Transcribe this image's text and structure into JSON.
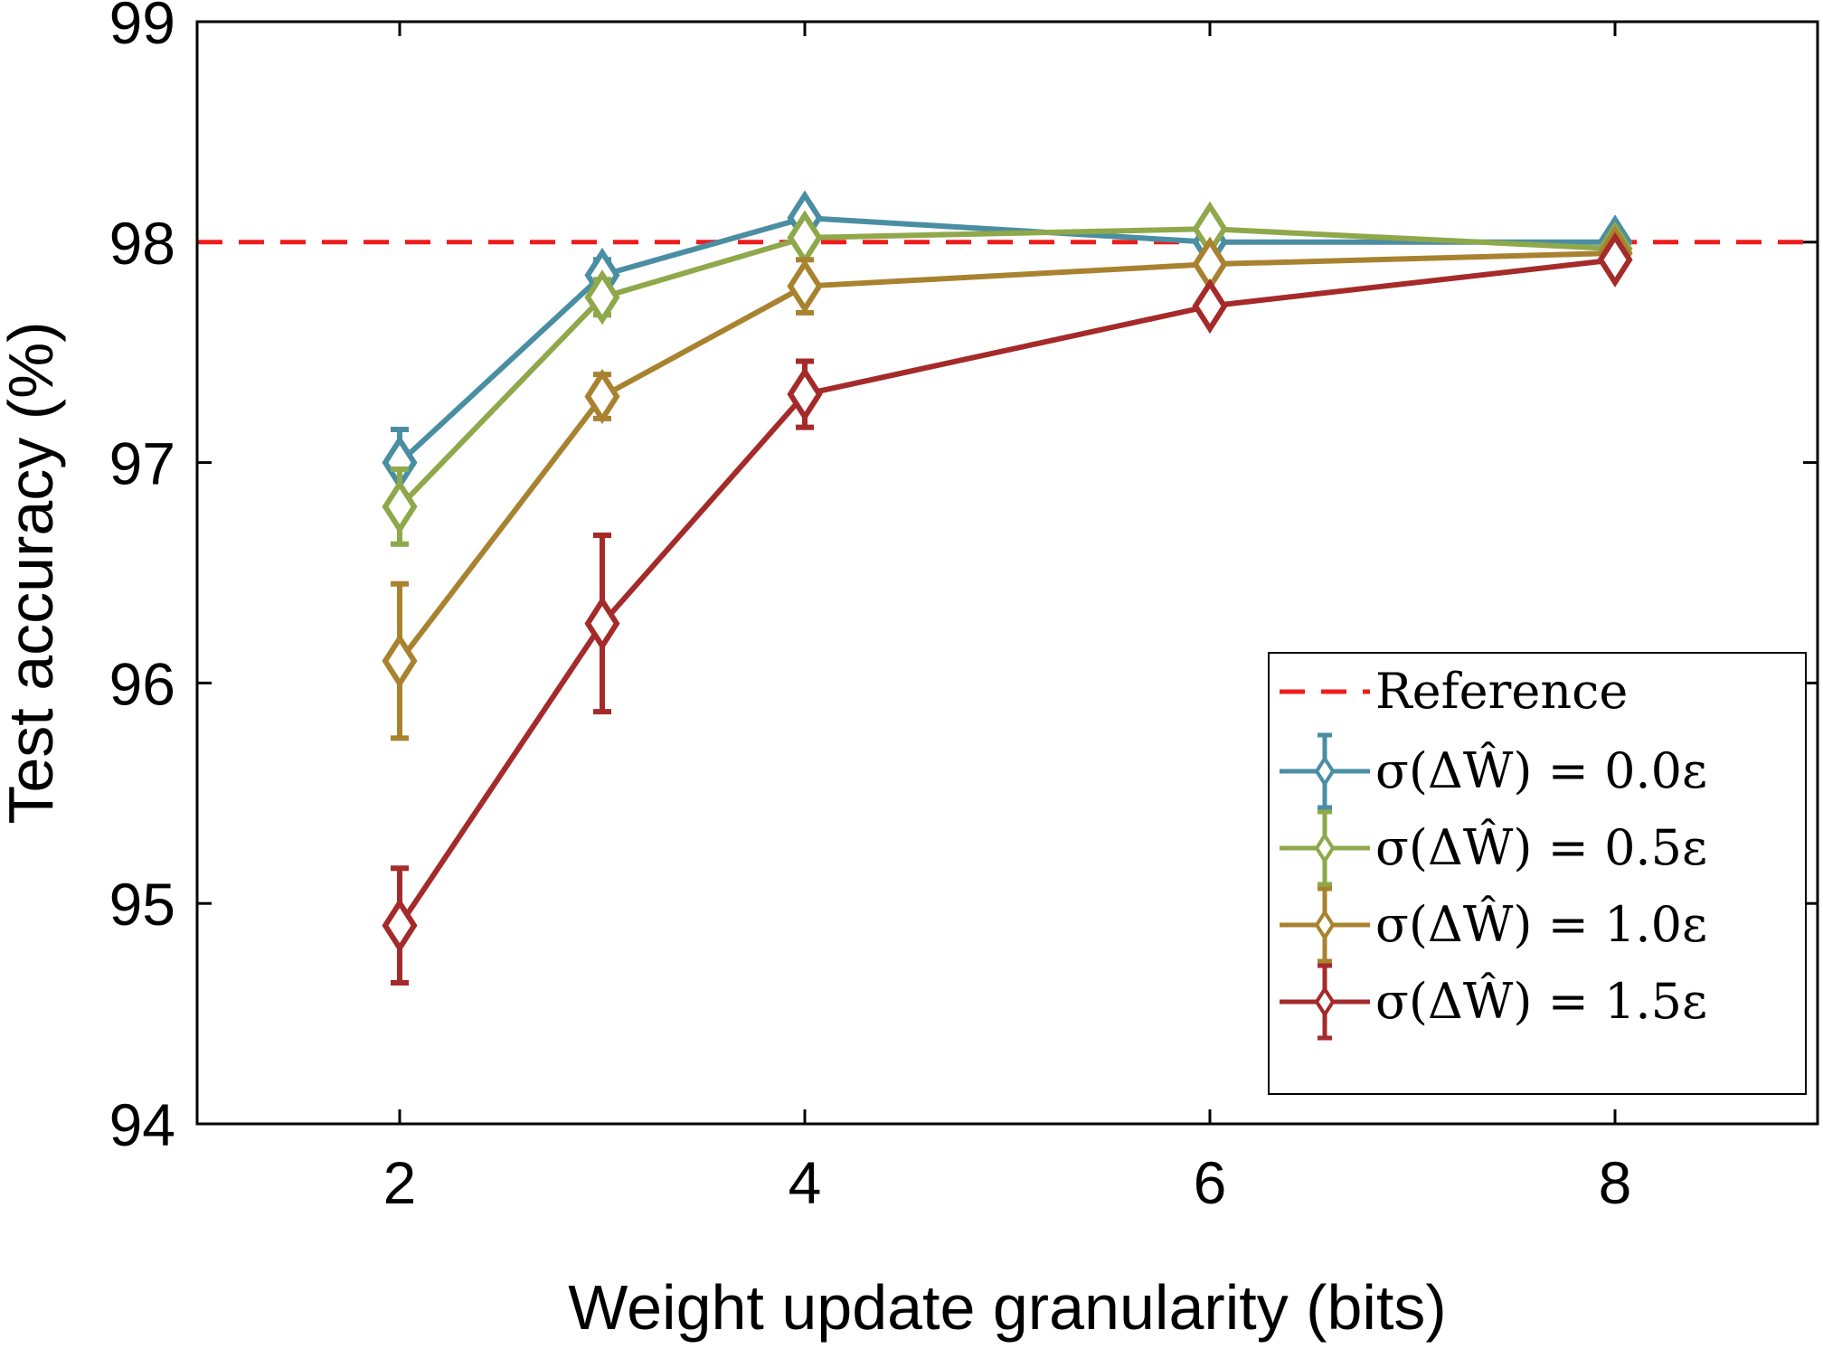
{
  "chart_data": {
    "type": "line",
    "title": "",
    "xlabel": "Weight update granularity (bits)",
    "ylabel": "Test accuracy (%)",
    "xlim": [
      1,
      9
    ],
    "ylim": [
      94,
      99
    ],
    "xticks": [
      2,
      4,
      6,
      8
    ],
    "yticks": [
      94,
      95,
      96,
      97,
      98,
      99
    ],
    "grid": false,
    "legend_position": "bottom-right",
    "x": [
      2,
      3,
      4,
      6,
      8
    ],
    "reference": {
      "name": "Reference",
      "y": 98.0,
      "color": "#ee1c1c",
      "style": "dashed"
    },
    "series": [
      {
        "name": "σ(ΔŴ) = 0.0ε",
        "color": "#4a8ea3",
        "values": [
          97.0,
          97.85,
          98.11,
          98.0,
          98.0
        ],
        "errors": [
          0.15,
          0.07,
          0.05,
          0.03,
          0.03
        ]
      },
      {
        "name": "σ(ΔŴ) = 0.5ε",
        "color": "#8fa84b",
        "values": [
          96.8,
          97.75,
          98.02,
          98.06,
          97.97
        ],
        "errors": [
          0.17,
          0.08,
          0.05,
          0.03,
          0.03
        ]
      },
      {
        "name": "σ(ΔŴ) = 1.0ε",
        "color": "#a98230",
        "values": [
          96.1,
          97.3,
          97.8,
          97.9,
          97.95
        ],
        "errors": [
          0.35,
          0.1,
          0.12,
          0.05,
          0.03
        ]
      },
      {
        "name": "σ(ΔŴ) = 1.5ε",
        "color": "#a52a2a",
        "values": [
          94.9,
          96.27,
          97.31,
          97.71,
          97.92
        ],
        "errors": [
          0.26,
          0.4,
          0.15,
          0.05,
          0.04
        ]
      }
    ]
  }
}
